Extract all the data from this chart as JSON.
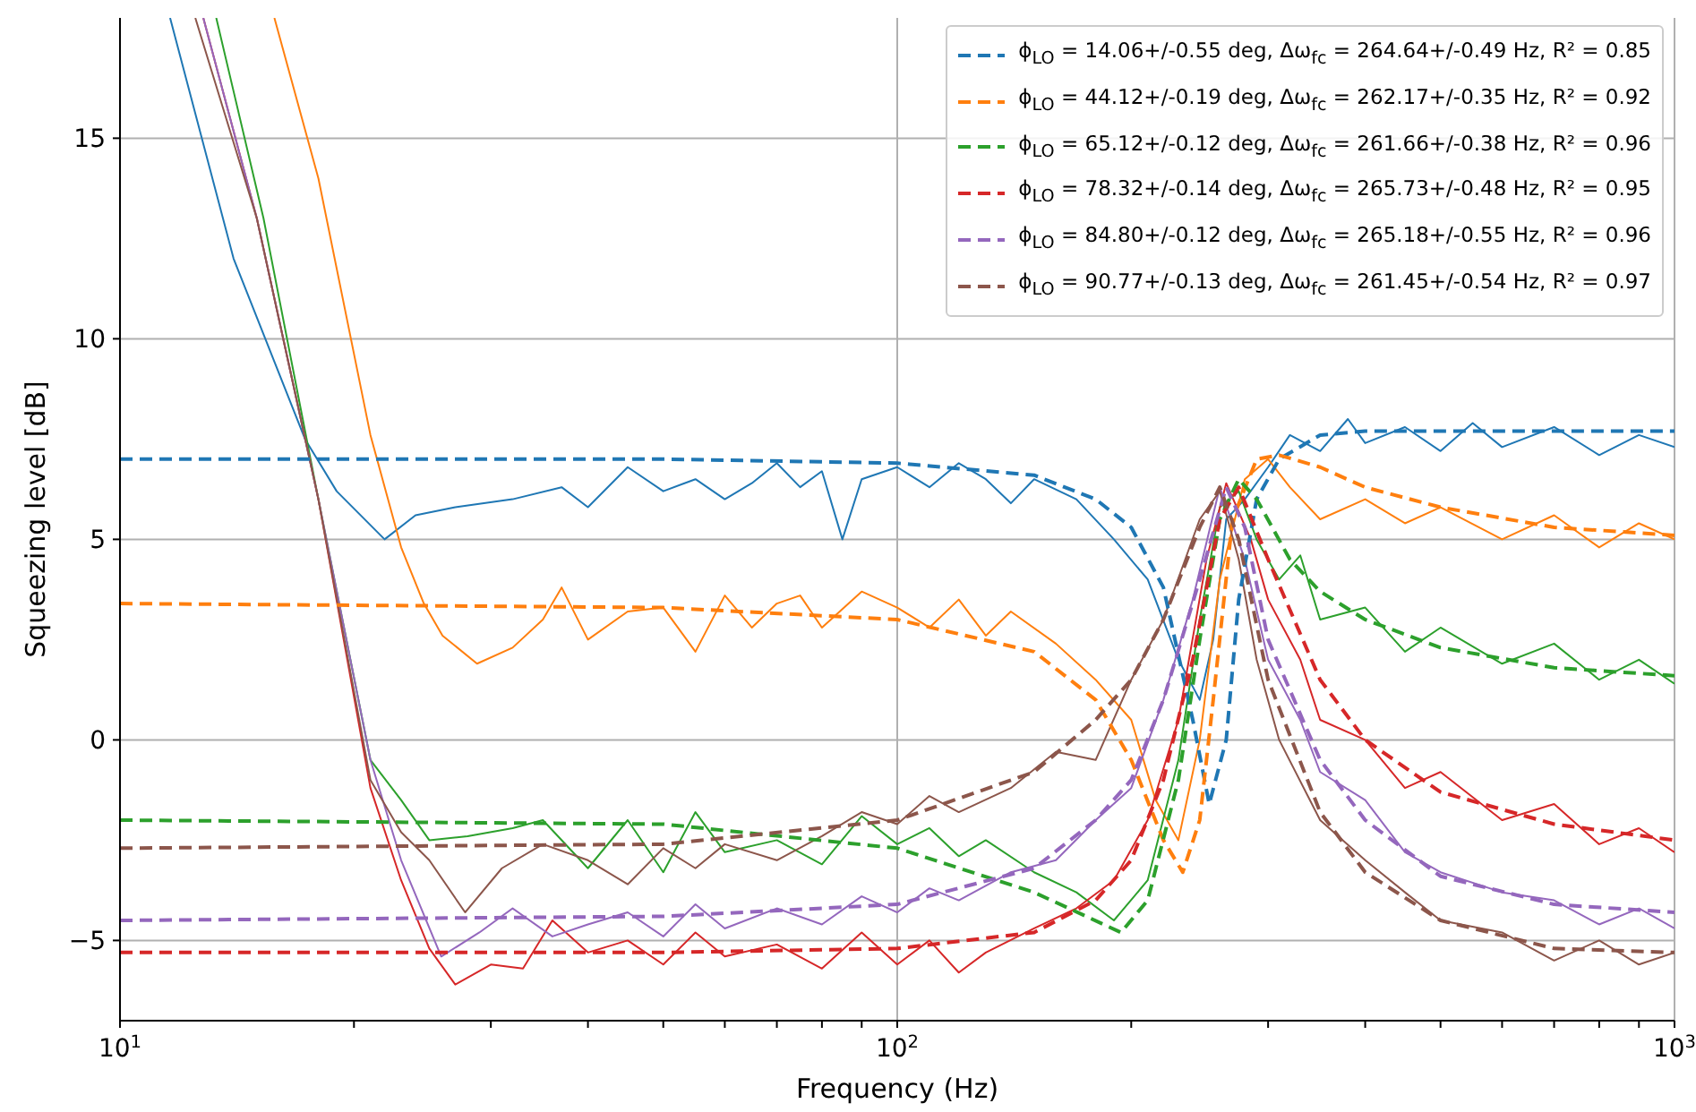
{
  "chart_data": {
    "type": "line",
    "xlabel": "Frequency (Hz)",
    "ylabel": "Squeezing level [dB]",
    "log": "x",
    "grid": true,
    "legend": "top right",
    "marker": "none",
    "xlim": [
      10,
      1000
    ],
    "xticks": [
      {
        "value": 10,
        "label": "10$^{1}$"
      },
      {
        "value": 20,
        "label": null
      },
      {
        "value": 30,
        "label": null
      },
      {
        "value": 40,
        "label": null
      },
      {
        "value": 50,
        "label": null
      },
      {
        "value": 60,
        "label": null
      },
      {
        "value": 70,
        "label": null
      },
      {
        "value": 80,
        "label": null
      },
      {
        "value": 90,
        "label": null
      },
      {
        "value": 100,
        "label": "10$^{2}$"
      },
      {
        "value": 200,
        "label": null
      },
      {
        "value": 300,
        "label": null
      },
      {
        "value": 400,
        "label": null
      },
      {
        "value": 500,
        "label": null
      },
      {
        "value": 600,
        "label": null
      },
      {
        "value": 700,
        "label": null
      },
      {
        "value": 800,
        "label": null
      },
      {
        "value": 900,
        "label": null
      },
      {
        "value": 1000,
        "label": "10$^{3}$"
      }
    ],
    "ylim": [
      -7,
      18
    ],
    "yticks": [
      {
        "value": -5,
        "label": "−5"
      },
      0,
      5,
      10,
      15
    ],
    "series": [
      {
        "color": "#1f77b4",
        "line_style": "solid",
        "x": [
          11.6,
          14,
          17.3,
          19,
          21.9,
          24,
          27,
          32,
          37,
          40,
          45,
          50,
          55,
          60,
          65,
          70,
          75,
          80,
          85,
          90,
          100,
          110,
          120,
          130,
          140,
          150,
          170,
          190,
          210,
          230,
          245,
          255,
          265,
          280,
          300,
          320,
          350,
          380,
          400,
          450,
          500,
          550,
          600,
          700,
          800,
          900,
          1000
        ],
        "values": [
          18,
          12,
          7.5,
          6.2,
          5.0,
          5.6,
          5.8,
          6.0,
          6.3,
          5.8,
          6.8,
          6.2,
          6.5,
          6.0,
          6.4,
          6.9,
          6.3,
          6.7,
          5.0,
          6.5,
          6.8,
          6.3,
          6.9,
          6.5,
          5.9,
          6.5,
          6.0,
          5.0,
          4.0,
          2.0,
          1.0,
          2.5,
          5.5,
          6.0,
          6.8,
          7.6,
          7.2,
          8.0,
          7.4,
          7.8,
          7.2,
          7.9,
          7.3,
          7.8,
          7.1,
          7.6,
          7.3
        ]
      },
      {
        "color": "#ff7f0e",
        "line_style": "solid",
        "x": [
          15.8,
          18,
          21,
          23,
          24.6,
          26,
          28.8,
          32,
          35,
          37,
          40,
          45,
          50,
          55,
          60,
          65,
          70,
          75,
          80,
          90,
          100,
          110,
          120,
          130,
          140,
          160,
          180,
          200,
          215,
          230,
          245,
          260,
          280,
          300,
          320,
          350,
          400,
          450,
          500,
          600,
          700,
          800,
          900,
          1000
        ],
        "values": [
          18,
          14,
          7.6,
          4.8,
          3.4,
          2.6,
          1.9,
          2.3,
          3.0,
          3.8,
          2.5,
          3.2,
          3.3,
          2.2,
          3.6,
          2.8,
          3.4,
          3.6,
          2.8,
          3.7,
          3.3,
          2.8,
          3.5,
          2.6,
          3.2,
          2.4,
          1.5,
          0.5,
          -1.5,
          -2.5,
          0.0,
          4.0,
          6.5,
          7.0,
          6.3,
          5.5,
          6.0,
          5.4,
          5.8,
          5.0,
          5.6,
          4.8,
          5.4,
          5.0
        ]
      },
      {
        "color": "#2ca02c",
        "line_style": "solid",
        "x": [
          13.3,
          15.3,
          18,
          21,
          23,
          25,
          28,
          32,
          35,
          40,
          45,
          50,
          55,
          60,
          70,
          80,
          90,
          100,
          110,
          120,
          130,
          150,
          170,
          190,
          210,
          230,
          245,
          260,
          275,
          290,
          310,
          330,
          350,
          400,
          450,
          500,
          600,
          700,
          800,
          900,
          1000
        ],
        "values": [
          18,
          13,
          6,
          -0.5,
          -1.5,
          -2.5,
          -2.4,
          -2.2,
          -2.0,
          -3.2,
          -2.0,
          -3.3,
          -1.8,
          -2.8,
          -2.5,
          -3.1,
          -1.9,
          -2.6,
          -2.2,
          -2.9,
          -2.5,
          -3.3,
          -3.8,
          -4.5,
          -3.5,
          -0.5,
          3.0,
          5.8,
          6.2,
          5.0,
          4.0,
          4.6,
          3.0,
          3.3,
          2.2,
          2.8,
          1.9,
          2.4,
          1.5,
          2.0,
          1.4
        ]
      },
      {
        "color": "#d62728",
        "line_style": "solid",
        "x": [
          12.8,
          15,
          18,
          21,
          23,
          25,
          27,
          30,
          33,
          36,
          40,
          45,
          50,
          55,
          60,
          70,
          80,
          90,
          100,
          110,
          120,
          130,
          150,
          170,
          190,
          210,
          230,
          250,
          265,
          285,
          300,
          330,
          350,
          400,
          450,
          500,
          600,
          700,
          800,
          900,
          1000
        ],
        "values": [
          18,
          13,
          6,
          -1.2,
          -3.5,
          -5.2,
          -6.1,
          -5.6,
          -5.7,
          -4.5,
          -5.3,
          -5.0,
          -5.6,
          -4.8,
          -5.4,
          -5.1,
          -5.7,
          -4.8,
          -5.6,
          -5.0,
          -5.8,
          -5.3,
          -4.7,
          -4.2,
          -3.5,
          -2.0,
          0.5,
          4.5,
          6.4,
          5.0,
          3.5,
          2.0,
          0.5,
          0.0,
          -1.2,
          -0.8,
          -2.0,
          -1.6,
          -2.6,
          -2.2,
          -2.8
        ]
      },
      {
        "color": "#9467bd",
        "line_style": "solid",
        "x": [
          12.8,
          15,
          18,
          21,
          23,
          25.9,
          29,
          32,
          36,
          40,
          45,
          50,
          55,
          60,
          70,
          80,
          90,
          100,
          110,
          120,
          140,
          160,
          180,
          200,
          220,
          240,
          260,
          280,
          300,
          330,
          350,
          400,
          450,
          500,
          600,
          700,
          800,
          900,
          1000
        ],
        "values": [
          18,
          13,
          6,
          -0.5,
          -3.0,
          -5.4,
          -4.8,
          -4.2,
          -4.9,
          -4.6,
          -4.3,
          -4.9,
          -4.1,
          -4.7,
          -4.2,
          -4.6,
          -3.9,
          -4.3,
          -3.7,
          -4.0,
          -3.3,
          -3.0,
          -2.0,
          -1.2,
          1.0,
          3.5,
          6.3,
          4.5,
          2.0,
          0.5,
          -0.8,
          -1.5,
          -2.8,
          -3.3,
          -3.8,
          -4.0,
          -4.6,
          -4.2,
          -4.7
        ]
      },
      {
        "color": "#8c564b",
        "line_style": "solid",
        "x": [
          12.5,
          15,
          18,
          21,
          23,
          25,
          27.8,
          31,
          35,
          40,
          45,
          50,
          55,
          60,
          70,
          80,
          90,
          100,
          110,
          120,
          140,
          160,
          180,
          200,
          220,
          245,
          260,
          275,
          290,
          310,
          350,
          400,
          450,
          500,
          600,
          700,
          800,
          900,
          1000
        ],
        "values": [
          18,
          13,
          6,
          -1.0,
          -2.3,
          -3.0,
          -4.3,
          -3.2,
          -2.6,
          -3.0,
          -3.6,
          -2.7,
          -3.2,
          -2.6,
          -3.0,
          -2.4,
          -1.8,
          -2.1,
          -1.4,
          -1.8,
          -1.2,
          -0.3,
          -0.5,
          1.5,
          3.0,
          5.5,
          6.2,
          4.5,
          2.0,
          0.0,
          -2.0,
          -3.0,
          -3.8,
          -4.5,
          -4.8,
          -5.5,
          -5.0,
          -5.6,
          -5.3
        ]
      },
      {
        "name": "ϕ$_{LO}$ = 14.06+/-0.55 deg, Δω$_{fc}$ = 264.64+/-0.49 Hz, R² = 0.85",
        "color": "#1f77b4",
        "line_style": "dashed",
        "x": [
          10,
          50,
          100,
          150,
          180,
          200,
          220,
          240,
          252,
          265,
          275,
          290,
          310,
          350,
          400,
          500,
          1000
        ],
        "values": [
          7.0,
          7.0,
          6.9,
          6.6,
          6.0,
          5.3,
          3.8,
          0.5,
          -1.6,
          0.0,
          3.5,
          6.0,
          7.0,
          7.6,
          7.7,
          7.7,
          7.7
        ]
      },
      {
        "name": "ϕ$_{LO}$ = 44.12+/-0.19 deg, Δω$_{fc}$ = 262.17+/-0.35 Hz, R² = 0.92",
        "color": "#ff7f0e",
        "line_style": "dashed",
        "x": [
          10,
          50,
          100,
          150,
          180,
          200,
          220,
          233,
          245,
          255,
          270,
          290,
          310,
          350,
          400,
          500,
          700,
          1000
        ],
        "values": [
          3.4,
          3.3,
          3.0,
          2.2,
          1.0,
          -0.5,
          -2.5,
          -3.3,
          -2.0,
          1.0,
          5.5,
          7.0,
          7.1,
          6.8,
          6.3,
          5.8,
          5.3,
          5.1
        ]
      },
      {
        "name": "ϕ$_{LO}$ = 65.12+/-0.12 deg, Δω$_{fc}$ = 261.66+/-0.38 Hz, R² = 0.96",
        "color": "#2ca02c",
        "line_style": "dashed",
        "x": [
          10,
          50,
          100,
          150,
          194,
          210,
          230,
          245,
          260,
          275,
          290,
          320,
          350,
          400,
          500,
          700,
          1000
        ],
        "values": [
          -2.0,
          -2.1,
          -2.7,
          -3.8,
          -4.8,
          -4.0,
          -1.0,
          2.5,
          5.5,
          6.5,
          6.0,
          4.5,
          3.7,
          3.0,
          2.3,
          1.8,
          1.6
        ]
      },
      {
        "name": "ϕ$_{LO}$ = 78.32+/-0.14 deg, Δω$_{fc}$ = 265.73+/-0.48 Hz, R² = 0.95",
        "color": "#d62728",
        "line_style": "dashed",
        "x": [
          10,
          50,
          100,
          150,
          180,
          200,
          220,
          240,
          260,
          275,
          300,
          350,
          400,
          500,
          700,
          1000
        ],
        "values": [
          -5.3,
          -5.3,
          -5.2,
          -4.8,
          -4.0,
          -3.0,
          -1.0,
          2.0,
          5.5,
          6.3,
          4.5,
          1.5,
          0.0,
          -1.3,
          -2.1,
          -2.5
        ]
      },
      {
        "name": "ϕ$_{LO}$ = 84.80+/-0.12 deg, Δω$_{fc}$ = 265.18+/-0.55 Hz, R² = 0.96",
        "color": "#9467bd",
        "line_style": "dashed",
        "x": [
          10,
          50,
          100,
          150,
          180,
          200,
          220,
          245,
          265,
          280,
          300,
          350,
          400,
          500,
          700,
          1000
        ],
        "values": [
          -4.5,
          -4.4,
          -4.1,
          -3.2,
          -2.0,
          -1.0,
          1.0,
          4.0,
          6.3,
          5.3,
          2.5,
          -0.5,
          -2.0,
          -3.4,
          -4.1,
          -4.3
        ]
      },
      {
        "name": "ϕ$_{LO}$ = 90.77+/-0.13 deg, Δω$_{fc}$ = 261.45+/-0.54 Hz, R² = 0.97",
        "color": "#8c564b",
        "line_style": "dashed",
        "x": [
          10,
          50,
          100,
          150,
          180,
          200,
          220,
          245,
          260,
          275,
          300,
          350,
          400,
          500,
          700,
          1000
        ],
        "values": [
          -2.7,
          -2.6,
          -2.0,
          -0.8,
          0.5,
          1.5,
          3.0,
          5.3,
          6.3,
          5.0,
          1.5,
          -1.8,
          -3.3,
          -4.5,
          -5.2,
          -5.3
        ]
      }
    ]
  }
}
